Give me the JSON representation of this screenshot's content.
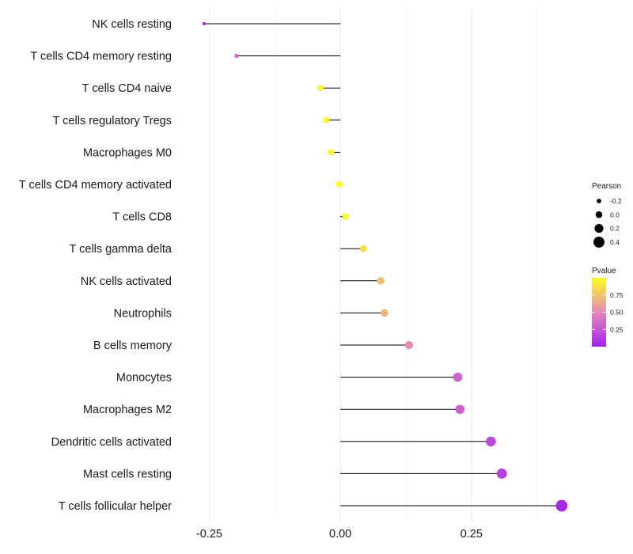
{
  "chart_data": {
    "type": "lollipop",
    "categories": [
      "NK cells resting",
      "T cells CD4 memory resting",
      "T cells CD4 naive",
      "T cells regulatory  Tregs ",
      "Macrophages M0",
      "T cells CD4 memory activated",
      "T cells CD8",
      "T cells gamma delta",
      "NK cells activated",
      "Neutrophils",
      "B cells memory",
      "Monocytes",
      "Macrophages M2",
      "Dendritic cells activated",
      "Mast cells resting",
      "T cells follicular helper"
    ],
    "pearson": [
      -0.26,
      -0.198,
      -0.038,
      -0.027,
      -0.018,
      -0.002,
      0.01,
      0.044,
      0.077,
      0.084,
      0.131,
      0.224,
      0.228,
      0.287,
      0.308,
      0.422
    ],
    "pvalue": [
      0.05,
      0.32,
      0.96,
      0.97,
      0.96,
      0.99,
      0.97,
      0.86,
      0.72,
      0.7,
      0.52,
      0.33,
      0.32,
      0.2,
      0.15,
      0.04
    ],
    "x_ticks": [
      -0.25,
      0,
      0.25
    ],
    "x_tick_labels": [
      "-0.25",
      "0.00",
      "0.25"
    ],
    "xlim": [
      -0.305,
      0.46
    ],
    "legend_size": {
      "title": "Pearson",
      "values": [
        -0.2,
        0.0,
        0.2,
        0.4
      ],
      "labels": [
        "-0.2",
        "0.0",
        "0.2",
        "0.4"
      ]
    },
    "legend_color": {
      "title": "Pvalue",
      "range": [
        0.0,
        1.0
      ],
      "ticks": [
        0.25,
        0.5,
        0.75
      ],
      "tick_labels": [
        "0.25",
        "0.50",
        "0.75"
      ],
      "low_color": "#a020f0",
      "mid_color": "#e589b8",
      "high_color": "#ffff20"
    },
    "grid": "vertical-major-minor",
    "legend_position": "right"
  }
}
